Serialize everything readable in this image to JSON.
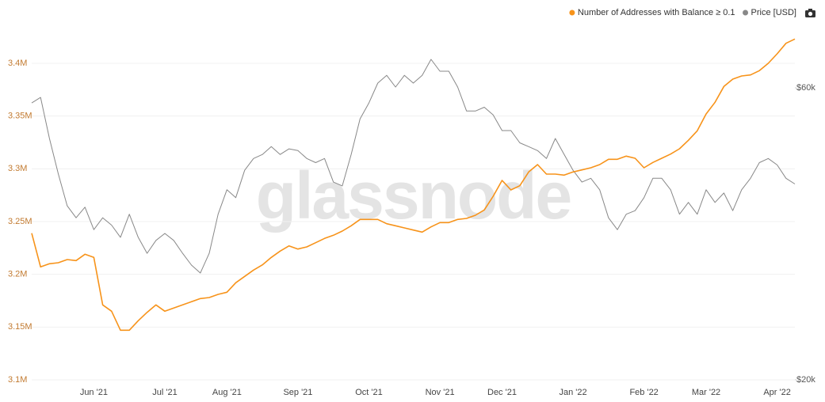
{
  "chart_data": {
    "type": "line",
    "watermark": "glassnode",
    "legend": "top-right",
    "grid": true,
    "categories": [
      null,
      null,
      null,
      null,
      null,
      null,
      null,
      "Jun '21",
      null,
      null,
      null,
      null,
      null,
      null,
      null,
      "Jul '21",
      null,
      null,
      null,
      null,
      null,
      null,
      "Aug '21",
      null,
      null,
      null,
      null,
      null,
      null,
      null,
      "Sep '21",
      null,
      null,
      null,
      null,
      null,
      null,
      null,
      "Oct '21",
      null,
      null,
      null,
      null,
      null,
      null,
      null,
      "Nov '21",
      null,
      null,
      null,
      null,
      null,
      null,
      "Dec '21",
      null,
      null,
      null,
      null,
      null,
      null,
      null,
      "Jan '22",
      null,
      null,
      null,
      null,
      null,
      null,
      null,
      "Feb '22",
      null,
      null,
      null,
      null,
      null,
      null,
      "Mar '22",
      null,
      null,
      null,
      null,
      null,
      null,
      null,
      "Apr '22",
      null,
      null
    ],
    "ylim": [
      3100000,
      3445000
    ],
    "yticks": [
      {
        "value": 3100000,
        "label": "3.1M"
      },
      {
        "value": 3150000,
        "label": "3.15M"
      },
      {
        "value": 3200000,
        "label": "3.2M"
      },
      {
        "value": 3250000,
        "label": "3.25M"
      },
      {
        "value": 3300000,
        "label": "3.3M"
      },
      {
        "value": 3350000,
        "label": "3.35M"
      },
      {
        "value": 3400000,
        "label": "3.4M"
      }
    ],
    "y2lim": [
      20000,
      78700
    ],
    "y2scale": "log",
    "y2ticks": [
      {
        "value": 20000,
        "label": "$20k"
      },
      {
        "value": 60000,
        "label": "$60k"
      }
    ],
    "series": [
      {
        "name": "Number of Addresses with Balance ≥ 0.1",
        "color": "#f7931a",
        "values": [
          3239000,
          3207000,
          3210000,
          3211000,
          3214000,
          3213000,
          3219000,
          3216000,
          3171000,
          3165000,
          3147000,
          3147000,
          3156000,
          3164000,
          3171000,
          3165000,
          3168000,
          3171000,
          3174000,
          3177000,
          3178000,
          3181000,
          3183000,
          3192000,
          3198000,
          3204000,
          3209000,
          3216000,
          3222000,
          3227000,
          3224000,
          3226000,
          3230000,
          3234000,
          3237000,
          3241000,
          3246000,
          3252000,
          3252000,
          3252000,
          3248000,
          3246000,
          3244000,
          3242000,
          3240000,
          3245000,
          3249000,
          3249000,
          3252000,
          3253000,
          3256000,
          3261000,
          3274000,
          3289000,
          3280000,
          3284000,
          3297000,
          3304000,
          3295000,
          3295000,
          3294000,
          3297000,
          3299000,
          3301000,
          3304000,
          3309000,
          3309000,
          3312000,
          3310000,
          3301000,
          3306000,
          3310000,
          3314000,
          3319000,
          3327000,
          3336000,
          3352000,
          3363000,
          3378000,
          3385000,
          3388000,
          3389000,
          3393000,
          3400000,
          3409000,
          3419000,
          3423000
        ]
      },
      {
        "name": "Price [USD]",
        "color": "#888888",
        "axis": "y2",
        "values": [
          56700,
          57900,
          49600,
          43400,
          38500,
          36800,
          38300,
          35200,
          36800,
          35800,
          34200,
          37300,
          34200,
          32200,
          33800,
          34700,
          33800,
          32200,
          30800,
          29900,
          32200,
          37300,
          40900,
          39700,
          44000,
          46000,
          46700,
          48100,
          46700,
          47700,
          47400,
          46000,
          45300,
          46000,
          42100,
          41500,
          46700,
          53400,
          56700,
          61100,
          62900,
          60200,
          62900,
          61100,
          62900,
          66800,
          63900,
          63900,
          60200,
          55000,
          55000,
          55800,
          54200,
          51100,
          51100,
          48800,
          48100,
          47400,
          46000,
          49600,
          46700,
          44000,
          42100,
          42700,
          40900,
          36800,
          35200,
          37300,
          37800,
          39700,
          42700,
          42700,
          40900,
          37300,
          39000,
          37300,
          40900,
          39000,
          40400,
          37800,
          40900,
          42700,
          45300,
          46000,
          44900,
          42700,
          41800
        ]
      }
    ]
  }
}
